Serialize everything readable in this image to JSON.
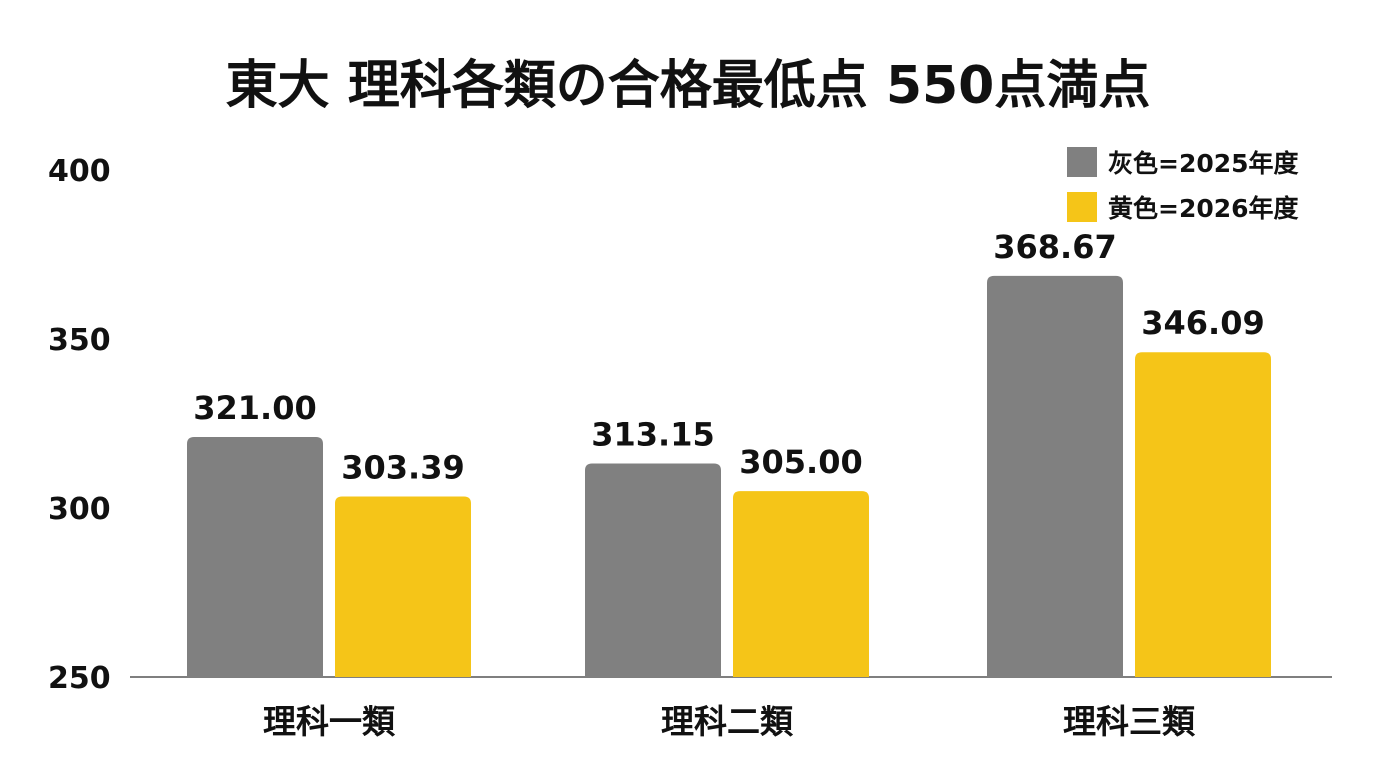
{
  "chart_data": {
    "type": "bar",
    "title": "東大 理科各類の合格最低点 550点満点",
    "categories": [
      "理科一類",
      "理科二類",
      "理科三類"
    ],
    "series": [
      {
        "name": "灰色=2025年度",
        "color": "#808080",
        "values": [
          321.0,
          313.15,
          368.67
        ]
      },
      {
        "name": "黄色=2026年度",
        "color": "#F5C518",
        "values": [
          303.39,
          305.0,
          346.09
        ]
      }
    ],
    "value_labels": [
      [
        "321.00",
        "313.15",
        "368.67"
      ],
      [
        "303.39",
        "305.00",
        "346.09"
      ]
    ],
    "ylim": [
      250,
      400
    ],
    "yticks": [
      "400",
      "350",
      "300",
      "250"
    ],
    "ytick_values": [
      400,
      350,
      300,
      250
    ],
    "xlabel": "",
    "ylabel": "",
    "grid": false,
    "legend_position": "top-right"
  }
}
